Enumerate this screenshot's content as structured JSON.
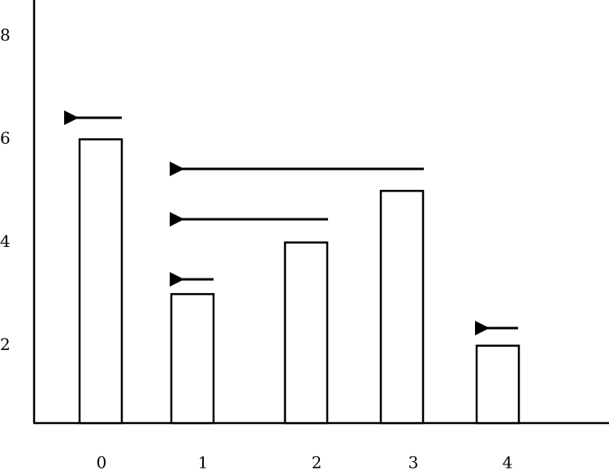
{
  "chart_data": {
    "type": "bar",
    "categories": [
      "0",
      "1",
      "2",
      "3",
      "4"
    ],
    "values": [
      6,
      3,
      4,
      5,
      2
    ],
    "ylim": [
      0.5,
      8.7
    ],
    "yticks": [
      2,
      4,
      6,
      8
    ],
    "color": "#ffffff"
  }
}
